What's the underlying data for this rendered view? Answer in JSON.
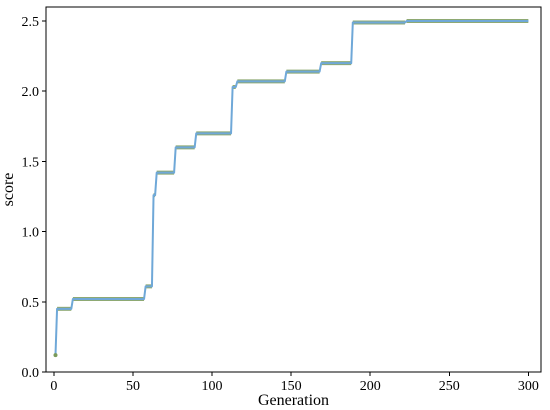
{
  "chart_data": {
    "type": "line",
    "title": "",
    "xlabel": "Generation",
    "ylabel": "score",
    "xlim": [
      -5,
      308
    ],
    "ylim": [
      0.0,
      2.6
    ],
    "xticks": [
      0,
      50,
      100,
      150,
      200,
      250,
      300
    ],
    "yticks": [
      0.0,
      0.5,
      1.0,
      1.5,
      2.0,
      2.5
    ],
    "xtick_labels": [
      "0",
      "50",
      "100",
      "150",
      "200",
      "250",
      "300"
    ],
    "ytick_labels": [
      "0.0",
      "0.5",
      "1.0",
      "1.5",
      "2.0",
      "2.5"
    ],
    "grid": false,
    "legend": false,
    "series": [
      {
        "line_color": "#6fa8d8",
        "highlight_color": "#7a9a5a",
        "points": [
          [
            1,
            0.12
          ],
          [
            2,
            0.45
          ],
          [
            11,
            0.45
          ],
          [
            12,
            0.52
          ],
          [
            57,
            0.52
          ],
          [
            58,
            0.61
          ],
          [
            62,
            0.61
          ],
          [
            63,
            1.26
          ],
          [
            64,
            1.26
          ],
          [
            65,
            1.42
          ],
          [
            76,
            1.42
          ],
          [
            77,
            1.6
          ],
          [
            89,
            1.6
          ],
          [
            90,
            1.7
          ],
          [
            112,
            1.7
          ],
          [
            113,
            2.03
          ],
          [
            115,
            2.03
          ],
          [
            116,
            2.07
          ],
          [
            146,
            2.07
          ],
          [
            147,
            2.14
          ],
          [
            168,
            2.14
          ],
          [
            169,
            2.2
          ],
          [
            188,
            2.2
          ],
          [
            189,
            2.49
          ],
          [
            222,
            2.49
          ],
          [
            223,
            2.5
          ],
          [
            300,
            2.5
          ]
        ]
      }
    ]
  }
}
